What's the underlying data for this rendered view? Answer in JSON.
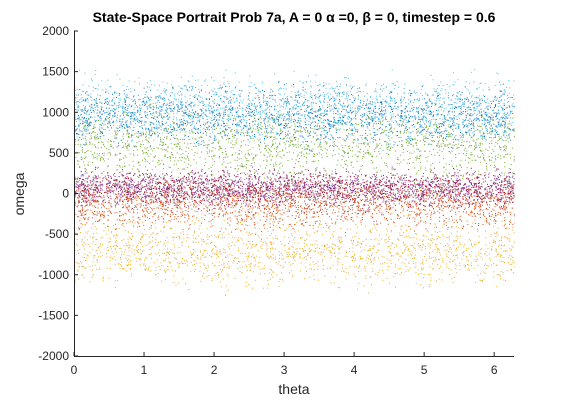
{
  "chart_data": {
    "type": "scatter",
    "title": "State-Space Portrait Prob 7a, A = 0 α =0, β = 0, timestep = 0.6",
    "xlabel": "theta",
    "ylabel": "omega",
    "xlim": [
      0,
      6.2832
    ],
    "ylim": [
      -2000,
      2000
    ],
    "xticks": [
      "0",
      "1",
      "2",
      "3",
      "4",
      "5",
      "6"
    ],
    "yticks": [
      "-2000",
      "-1500",
      "-1000",
      "-500",
      "0",
      "500",
      "1000",
      "1500",
      "2000"
    ],
    "grid": false,
    "legend": "none",
    "series": [
      {
        "color": "#0072BD",
        "y_center": 950,
        "y_spread": 380
      },
      {
        "color": "#4DBEEE",
        "y_center": 1050,
        "y_spread": 420
      },
      {
        "color": "#77AC30",
        "y_center": 600,
        "y_spread": 450
      },
      {
        "color": "#7E2F8E",
        "y_center": 80,
        "y_spread": 220
      },
      {
        "color": "#A2142F",
        "y_center": 50,
        "y_spread": 250
      },
      {
        "color": "#D95319",
        "y_center": -150,
        "y_spread": 300
      },
      {
        "color": "#EDB120",
        "y_center": -700,
        "y_spread": 450
      }
    ]
  }
}
